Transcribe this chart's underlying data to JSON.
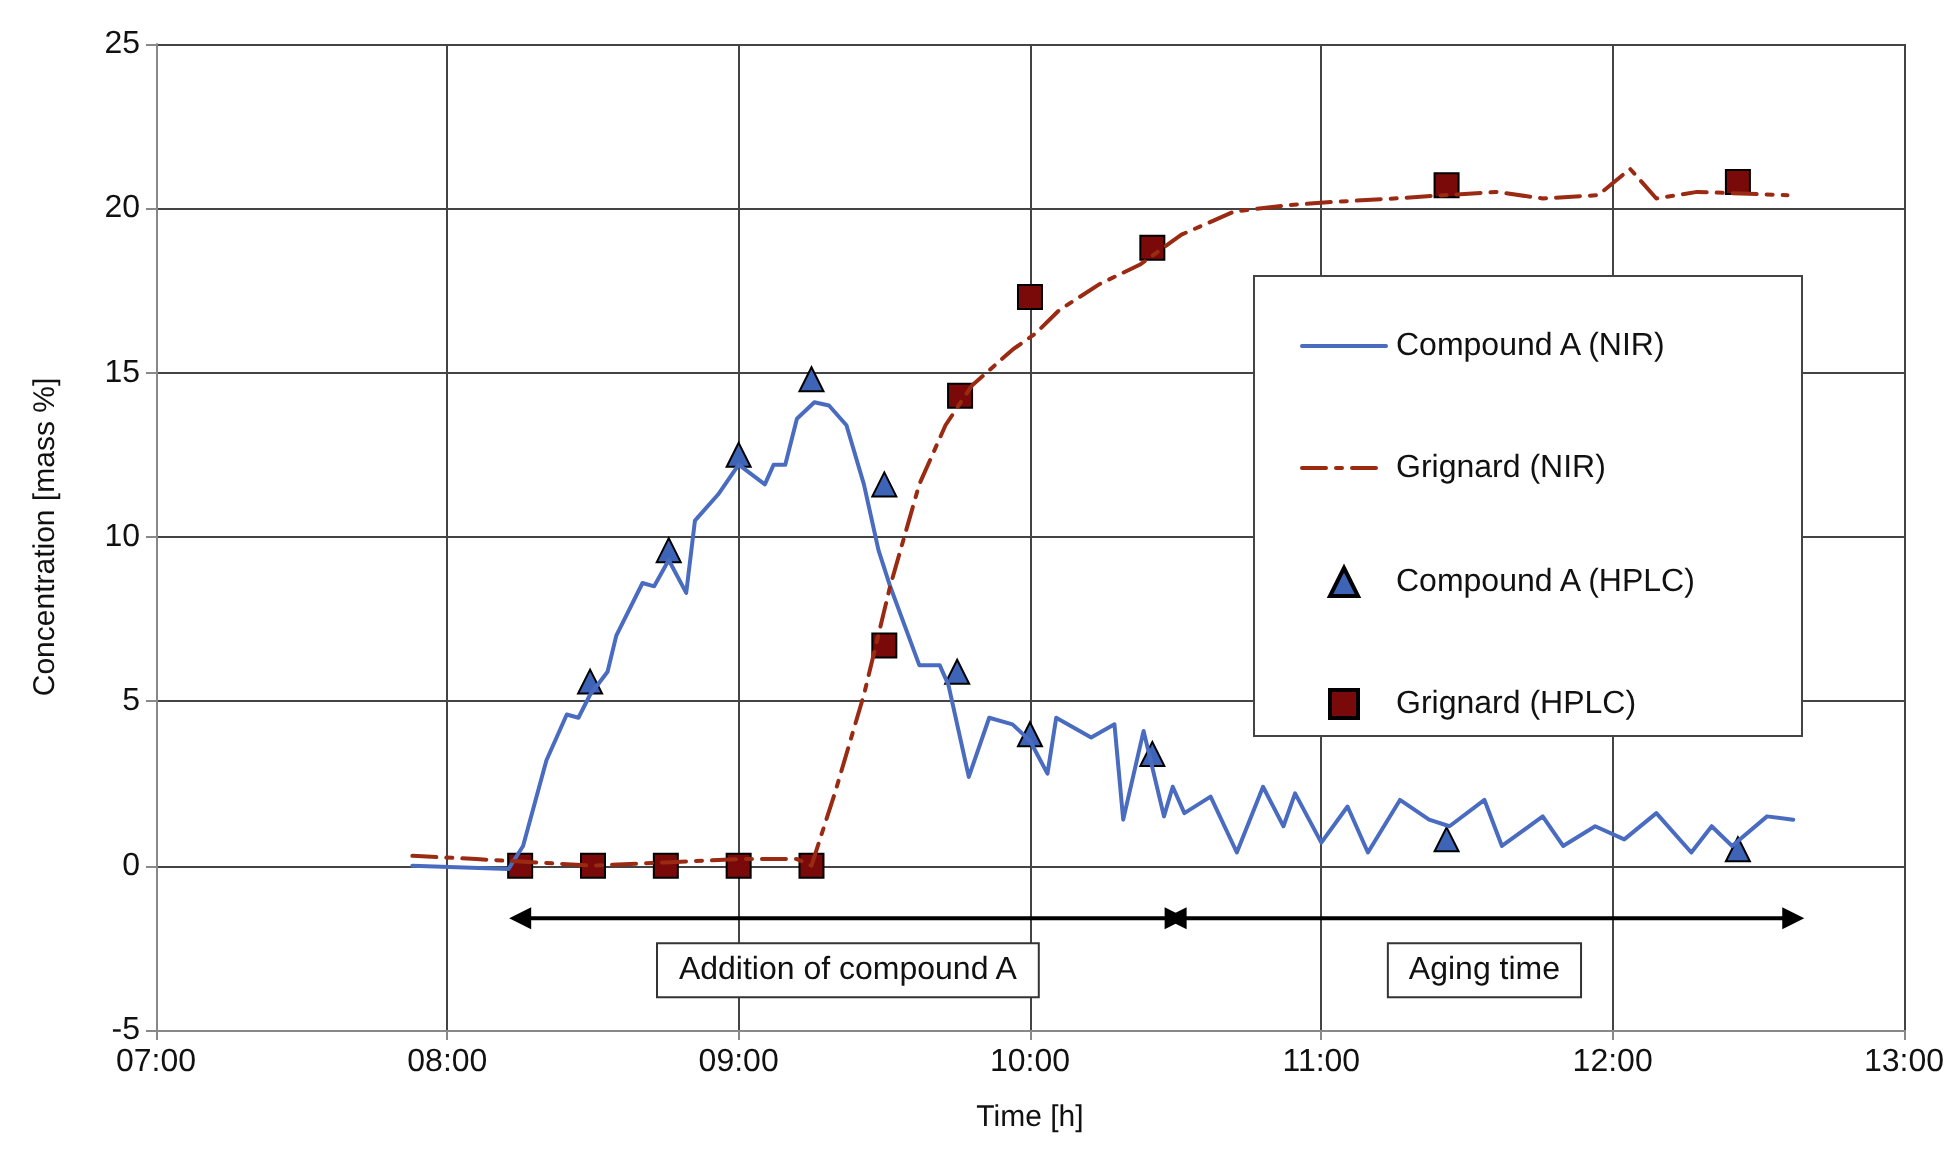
{
  "chart_data": {
    "type": "line",
    "xlabel": "Time [h]",
    "ylabel": "Concentration [mass %]",
    "xlim": [
      7,
      13
    ],
    "xticks": [
      {
        "value": 7,
        "label": "07:00"
      },
      {
        "value": 8,
        "label": "08:00"
      },
      {
        "value": 9,
        "label": "09:00"
      },
      {
        "value": 10,
        "label": "10:00"
      },
      {
        "value": 11,
        "label": "11:00"
      },
      {
        "value": 12,
        "label": "12:00"
      },
      {
        "value": 13,
        "label": "13:00"
      }
    ],
    "ylim": [
      -5,
      25
    ],
    "yticks": [
      -5,
      0,
      5,
      10,
      15,
      20,
      25
    ],
    "grid": true,
    "legend": "right",
    "series": [
      {
        "name": "Compound A (NIR)",
        "type": "line",
        "color": "#4a6cc0",
        "marker": "none",
        "line_style": "solid",
        "x": [
          7.88,
          8.21,
          8.26,
          8.34,
          8.41,
          8.45,
          8.49,
          8.55,
          8.58,
          8.67,
          8.71,
          8.76,
          8.82,
          8.85,
          8.93,
          9.0,
          9.09,
          9.12,
          9.16,
          9.2,
          9.26,
          9.31,
          9.37,
          9.43,
          9.48,
          9.52,
          9.62,
          9.69,
          9.72,
          9.79,
          9.86,
          9.94,
          10.0,
          10.06,
          10.09,
          10.21,
          10.29,
          10.32,
          10.39,
          10.46,
          10.49,
          10.53,
          10.62,
          10.71,
          10.8,
          10.87,
          10.91,
          11.0,
          11.09,
          11.16,
          11.27,
          11.37,
          11.44,
          11.56,
          11.62,
          11.76,
          11.83,
          11.94,
          12.04,
          12.15,
          12.27,
          12.34,
          12.41,
          12.53,
          12.62
        ],
        "values": [
          0.0,
          -0.1,
          0.6,
          3.2,
          4.6,
          4.5,
          5.2,
          5.9,
          7.0,
          8.6,
          8.5,
          9.3,
          8.3,
          10.5,
          11.3,
          12.2,
          11.6,
          12.2,
          12.2,
          13.6,
          14.1,
          14.0,
          13.4,
          11.6,
          9.6,
          8.5,
          6.1,
          6.1,
          5.5,
          2.7,
          4.5,
          4.3,
          3.8,
          2.8,
          4.5,
          3.9,
          4.3,
          1.4,
          4.1,
          1.5,
          2.4,
          1.6,
          2.1,
          0.4,
          2.4,
          1.2,
          2.2,
          0.7,
          1.8,
          0.4,
          2.0,
          1.4,
          1.2,
          2.0,
          0.6,
          1.5,
          0.6,
          1.2,
          0.8,
          1.6,
          0.4,
          1.2,
          0.6,
          1.5,
          1.4
        ]
      },
      {
        "name": "Grignard (NIR)",
        "type": "line",
        "color": "#9b2a12",
        "marker": "none",
        "line_style": "dashed",
        "x": [
          7.88,
          8.1,
          8.5,
          8.75,
          9.0,
          9.2,
          9.25,
          9.33,
          9.43,
          9.52,
          9.62,
          9.71,
          9.8,
          9.94,
          10.02,
          10.1,
          10.24,
          10.38,
          10.52,
          10.7,
          10.89,
          11.05,
          11.25,
          11.6,
          11.76,
          11.95,
          12.06,
          12.15,
          12.29,
          12.6
        ],
        "values": [
          0.3,
          0.2,
          0.0,
          0.1,
          0.2,
          0.2,
          0.0,
          2.2,
          5.2,
          8.5,
          11.6,
          13.4,
          14.6,
          15.7,
          16.2,
          16.9,
          17.7,
          18.3,
          19.2,
          19.9,
          20.1,
          20.2,
          20.3,
          20.5,
          20.3,
          20.4,
          21.2,
          20.3,
          20.5,
          20.4
        ]
      },
      {
        "name": "Compound A (HPLC)",
        "type": "scatter",
        "color": "#3e64b8",
        "marker": "triangle",
        "x": [
          8.49,
          8.76,
          9.0,
          9.25,
          9.5,
          9.75,
          10.0,
          10.42,
          11.43,
          12.43
        ],
        "values": [
          5.6,
          9.6,
          12.5,
          14.8,
          11.6,
          5.9,
          4.0,
          3.4,
          0.8,
          0.5
        ]
      },
      {
        "name": "Grignard (HPLC)",
        "type": "scatter",
        "color": "#7a0a0a",
        "marker": "square",
        "x": [
          8.25,
          8.5,
          8.75,
          9.0,
          9.25,
          9.5,
          9.76,
          10.0,
          10.42,
          11.43,
          12.43
        ],
        "values": [
          0,
          0,
          0,
          0,
          0,
          6.7,
          14.3,
          17.3,
          18.8,
          20.7,
          20.8
        ]
      },
      {
        "color": "#000000",
        "marker": "triangle",
        "line_style": "solid",
        "x": [
          8.25,
          10.5
        ],
        "values": [
          -1.6,
          -1.6
        ]
      },
      {
        "color": "#000000",
        "marker": "triangle",
        "line_style": "solid",
        "x": [
          10.5,
          12.62
        ],
        "values": [
          -1.6,
          -1.6
        ]
      }
    ],
    "annotations": [
      "Addition of compound A",
      "Aging time"
    ]
  }
}
